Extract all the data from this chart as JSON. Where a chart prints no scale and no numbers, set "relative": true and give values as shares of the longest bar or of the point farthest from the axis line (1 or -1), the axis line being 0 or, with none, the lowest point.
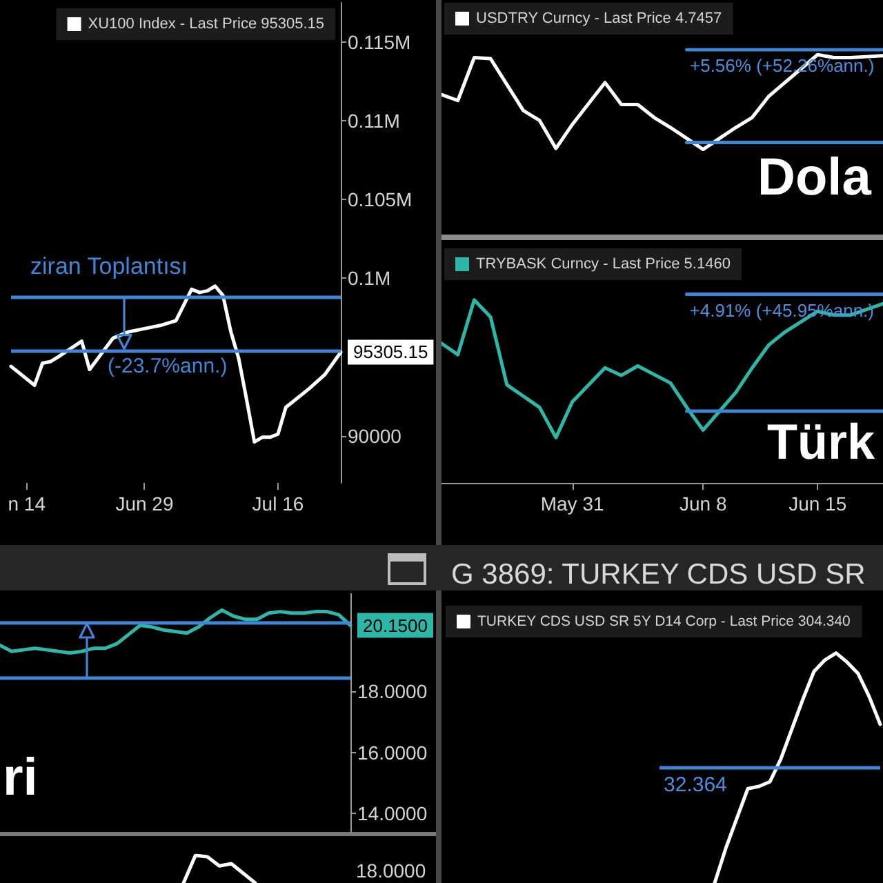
{
  "chart_data": [
    {
      "type": "line",
      "series": [
        {
          "name": "XU100 Index - Last Price 95305.15",
          "color": "#ffffff",
          "x": [
            "--06-12",
            "--06-15",
            "--06-16",
            "--06-17",
            "--06-18",
            "--06-21",
            "--06-22",
            "--06-25",
            "--06-27",
            "--06-29",
            "--07-01",
            "--07-03",
            "--07-05",
            "--07-06",
            "--07-07",
            "--07-08",
            "--07-09",
            "--07-10",
            "--07-11",
            "--07-12",
            "--07-13",
            "--07-14",
            "--07-15",
            "--07-16",
            "--07-17",
            "--07-20",
            "--07-22",
            "--07-24"
          ],
          "values": [
            94400,
            93200,
            94600,
            94700,
            95000,
            96000,
            94200,
            96200,
            96600,
            96800,
            97000,
            97300,
            99300,
            99100,
            99200,
            99500,
            98900,
            96600,
            94900,
            92300,
            89600,
            89900,
            89900,
            90100,
            91800,
            93000,
            93900,
            95305.15
          ],
          "value_labels": [
            null,
            null,
            null,
            null,
            null,
            null,
            null,
            null,
            null,
            null,
            null,
            null,
            null,
            null,
            null,
            null,
            null,
            null,
            null,
            null,
            null,
            null,
            null,
            null,
            null,
            null,
            null,
            "95305.15"
          ]
        }
      ],
      "xlim": [
        "--06-12",
        "--07-24"
      ],
      "xticks": [
        {
          "value": "--06-14",
          "label": "n 14"
        },
        {
          "value": "--06-29",
          "label": "Jun 29"
        },
        {
          "value": "--07-16",
          "label": "Jul 16"
        }
      ],
      "ylim": [
        87000,
        117500
      ],
      "yticks": [
        90000,
        {
          "value": 100000,
          "label": "0.1M"
        },
        {
          "value": 105000,
          "label": "0.105M"
        },
        {
          "value": 110000,
          "label": "0.11M"
        },
        {
          "value": 115000,
          "label": "0.115M"
        }
      ],
      "ref_lines": [
        {
          "axis": "y",
          "value": 98800,
          "label": "ziran Toplantısı",
          "color": "#3f86d6"
        },
        {
          "axis": "y",
          "value": 95400,
          "label": "(-23.7%ann.)",
          "color": "#3f86d6"
        }
      ],
      "legend": "top right"
    },
    {
      "type": "line",
      "relative": true,
      "categories": [
        null,
        null,
        null,
        null,
        null,
        null,
        null,
        null,
        null,
        null,
        null,
        null,
        null,
        null,
        null,
        null,
        null,
        null,
        null,
        null,
        null,
        null,
        null,
        null,
        null,
        null,
        null,
        null
      ],
      "series": [
        {
          "name": "USDTRY Curncy - Last Price 4.7457",
          "color": "#ffffff",
          "values": [
            0.55,
            0.49,
            0.92,
            0.91,
            0.65,
            0.39,
            0.29,
            0.01,
            0.25,
            0.46,
            0.67,
            0.45,
            0.45,
            0.32,
            0.22,
            0.11,
            0,
            0.11,
            0.22,
            0.32,
            0.53,
            0.67,
            0.81,
            0.95,
            0.92,
            0.92,
            0.93,
            0.94
          ]
        },
        {
          "color": "#3f86d6",
          "values": [
            null,
            null,
            null,
            null,
            null,
            null,
            null,
            null,
            null,
            null,
            null,
            null,
            null,
            null,
            null,
            1,
            1,
            1,
            1,
            1,
            1,
            1,
            1,
            1,
            1,
            1,
            1,
            1
          ]
        },
        {
          "color": "#3f86d6",
          "values": [
            null,
            null,
            null,
            null,
            null,
            null,
            null,
            null,
            null,
            null,
            null,
            null,
            null,
            null,
            null,
            0.07,
            0.07,
            0.07,
            0.07,
            0.07,
            0.07,
            0.07,
            0.07,
            0.07,
            0.07,
            0.07,
            0.07,
            0.07
          ]
        }
      ],
      "tick_labels": false,
      "legend": "top left",
      "annotations": [
        {
          "text": "+5.56% (+52.26%ann.)",
          "y": 1
        },
        "Dola"
      ]
    },
    {
      "type": "line",
      "relative": true,
      "series": [
        {
          "name": "TRYBASK Curncy - Last Price 5.1460",
          "color": "#2bb8a8",
          "x": [
            "--05-23",
            "--05-24",
            "--05-25",
            "--05-26",
            "--05-27",
            "--05-29",
            "--05-30",
            "--05-31",
            "--06-02",
            "--06-03",
            "--06-04",
            "--06-06",
            "--06-07",
            "--06-08",
            "--06-10",
            "--06-11",
            "--06-12",
            "--06-13",
            "--06-15",
            "--06-16",
            "--06-17",
            "--06-19"
          ],
          "values": [
            0.74,
            0.68,
            0.97,
            0.88,
            0.52,
            0.4,
            0.24,
            0.43,
            0.61,
            0.57,
            0.62,
            0.53,
            0.4,
            0.28,
            0.48,
            0.61,
            0.73,
            0.8,
            0.91,
            0.89,
            0.89,
            0.95
          ]
        },
        {
          "color": "#3f86d6",
          "x": [
            "--06-07",
            "--06-19"
          ],
          "values": [
            1,
            1
          ]
        },
        {
          "color": "#3f86d6",
          "x": [
            "--06-07",
            "--06-19"
          ],
          "values": [
            0.38,
            0.38
          ]
        }
      ],
      "xlim": [
        "--05-23",
        "--06-19"
      ],
      "xticks": [
        {
          "value": "--05-31",
          "label": "May 31"
        },
        {
          "value": "--06-08",
          "label": "Jun 8"
        },
        {
          "value": "--06-15",
          "label": "Jun 15"
        }
      ],
      "tick_labels": "x",
      "legend": "top left",
      "annotations": [
        {
          "text": "+4.91% (+45.95%ann.)",
          "x": "--06-07",
          "y": 1
        },
        "Türk"
      ]
    },
    {
      "type": "line",
      "categories": [
        null,
        null,
        null,
        null,
        null,
        null,
        null,
        null,
        null,
        null,
        null,
        null,
        null,
        null,
        null,
        null,
        null,
        null,
        null,
        null,
        null,
        null,
        null,
        null,
        null,
        null,
        null,
        null,
        null,
        null,
        null
      ],
      "series": [
        {
          "color": "#2bb8a8",
          "values": [
            19.5,
            19.3,
            19.35,
            19.4,
            19.35,
            19.3,
            19.25,
            19.3,
            19.4,
            19.4,
            19.55,
            19.85,
            20.15,
            20.1,
            20.0,
            19.95,
            19.9,
            20.1,
            20.4,
            20.65,
            20.45,
            20.35,
            20.35,
            20.55,
            20.6,
            20.55,
            20.55,
            20.6,
            20.6,
            20.5,
            20.15
          ],
          "value_labels": [
            null,
            null,
            null,
            null,
            null,
            null,
            null,
            null,
            null,
            null,
            null,
            null,
            null,
            null,
            null,
            null,
            null,
            null,
            null,
            null,
            null,
            null,
            null,
            null,
            null,
            null,
            null,
            null,
            null,
            null,
            "20.1500"
          ]
        }
      ],
      "ylim": [
        13.4,
        21.2
      ],
      "yticks": [
        {
          "value": 14,
          "label": "14.0000"
        },
        {
          "value": 16,
          "label": "16.0000"
        },
        {
          "value": 18,
          "label": "18.0000"
        }
      ],
      "ref_lines": [
        {
          "axis": "y",
          "value": 20.25,
          "color": "#3f86d6"
        },
        {
          "axis": "y",
          "value": 18.45,
          "color": "#3f86d6"
        }
      ],
      "tick_labels": "y",
      "annotations": [
        "ri"
      ]
    },
    {
      "type": "line",
      "relative": true,
      "categories": [
        null,
        null,
        null,
        null,
        null,
        null,
        null
      ],
      "series": [
        {
          "color": "#ffffff",
          "values": [
            0,
            1,
            0.95,
            0.62,
            0.7,
            0.35,
            0
          ]
        }
      ],
      "tick_labels": false,
      "annotations": [
        "18.0000"
      ]
    },
    {
      "type": "line",
      "relative": true,
      "title": "G 3869: TURKEY CDS USD SR",
      "categories": [
        null,
        null,
        null,
        null,
        null,
        null,
        null,
        null,
        null,
        null,
        null,
        null,
        null,
        null,
        null,
        null,
        null,
        null,
        null,
        null,
        null
      ],
      "series": [
        {
          "name": "TURKEY CDS USD SR 5Y D14 Corp - Last Price 304.340",
          "color": "#ffffff",
          "values": [
            null,
            null,
            null,
            null,
            null,
            0,
            0.15,
            0.28,
            0.41,
            0.42,
            0.44,
            0.54,
            0.67,
            0.8,
            0.92,
            0.97,
            1,
            0.96,
            0.91,
            0.81,
            0.69
          ]
        }
      ],
      "ref_lines": [
        {
          "axis": "y",
          "value": 0.5,
          "color": "#3f86d6"
        }
      ],
      "tick_labels": false,
      "legend": "top left",
      "annotations": [
        {
          "text": "32.364",
          "y": 0.5
        }
      ]
    }
  ]
}
